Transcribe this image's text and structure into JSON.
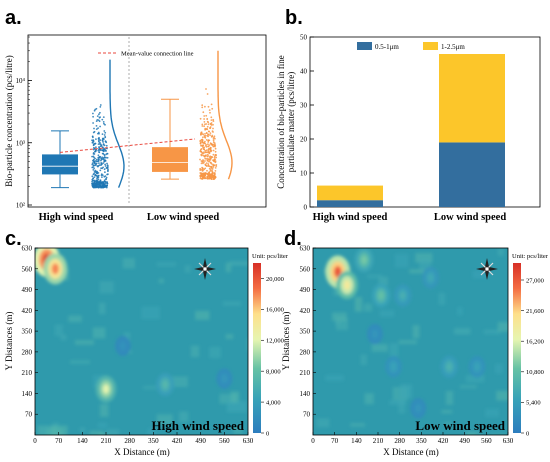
{
  "chart_data": [
    {
      "panel": "a.",
      "type": "box",
      "ylabel": "Bio-particle concentration (pcs/litre)",
      "yscale": "log",
      "ylim": [
        100,
        50000
      ],
      "y_ticks": [
        "10²",
        "10³",
        "10⁴"
      ],
      "y_tick_values": [
        100,
        1000,
        10000
      ],
      "categories": [
        "High wind speed",
        "Low  wind speed"
      ],
      "annotation": "Mean-value connection line",
      "colors": {
        "high": "#1f77b4",
        "low": "#f79646",
        "mean_line": "#e8473c"
      },
      "boxes": [
        {
          "name": "High wind speed",
          "whisker_low": 190,
          "q1": 310,
          "median": 420,
          "q3": 650,
          "whisker_high": 1550,
          "mean": 700
        },
        {
          "name": "Low  wind speed",
          "whisker_low": 260,
          "q1": 340,
          "median": 480,
          "q3": 850,
          "whisker_high": 5000,
          "mean": 1150
        }
      ]
    },
    {
      "panel": "b.",
      "type": "bar",
      "stacked": true,
      "ylabel": "Concentration of bio-particles in fine particulate matter (pcs/litre)",
      "ylim": [
        0,
        50
      ],
      "y_ticks": [
        0,
        10,
        20,
        30,
        40,
        50
      ],
      "categories": [
        "High wind speed",
        "Low  wind speed"
      ],
      "legend_position": "top",
      "series": [
        {
          "name": "0.5-1μm",
          "color": "#336e9e",
          "values": [
            2,
            19
          ]
        },
        {
          "name": "1-2.5μm",
          "color": "#fcc62a",
          "values": [
            4.3,
            26
          ]
        }
      ]
    },
    {
      "panel": "c.",
      "type": "heatmap",
      "title": "High wind speed",
      "xlabel": "X Distance (m)",
      "ylabel": "Y Distances (m)",
      "x_ticks": [
        0,
        70,
        140,
        210,
        280,
        350,
        420,
        490,
        560,
        630
      ],
      "y_ticks": [
        70,
        140,
        210,
        280,
        350,
        420,
        490,
        560,
        630
      ],
      "colorbar_label": "Unit: pcs/liter",
      "colorbar_ticks": [
        "0",
        "4,000",
        "8,000",
        "12,000",
        "16,000",
        "20,000"
      ],
      "colorbar_max": 22000,
      "hotspots": [
        {
          "x": 35,
          "y": 590,
          "value": 22000
        },
        {
          "x": 60,
          "y": 560,
          "value": 18000
        },
        {
          "x": 210,
          "y": 155,
          "value": 12000
        },
        {
          "x": 385,
          "y": 170,
          "value": 7000
        },
        {
          "x": 560,
          "y": 190,
          "value": 3000
        },
        {
          "x": 260,
          "y": 300,
          "value": 2500
        }
      ]
    },
    {
      "panel": "d.",
      "type": "heatmap",
      "title": "Low wind speed",
      "xlabel": "X Distance (m)",
      "ylabel": "Y Distances (m)",
      "x_ticks": [
        0,
        70,
        140,
        210,
        280,
        350,
        420,
        490,
        560,
        630
      ],
      "y_ticks": [
        70,
        140,
        210,
        280,
        350,
        420,
        490,
        560,
        630
      ],
      "colorbar_label": "Unit: pcs/liter",
      "colorbar_ticks": [
        "0",
        "5,400",
        "10,800",
        "16,200",
        "21,600",
        "27,000"
      ],
      "colorbar_max": 30000,
      "hotspots": [
        {
          "x": 80,
          "y": 550,
          "value": 27000
        },
        {
          "x": 110,
          "y": 505,
          "value": 19000
        },
        {
          "x": 165,
          "y": 590,
          "value": 12000
        },
        {
          "x": 220,
          "y": 470,
          "value": 11000
        },
        {
          "x": 290,
          "y": 470,
          "value": 8000
        },
        {
          "x": 380,
          "y": 530,
          "value": 7000
        },
        {
          "x": 440,
          "y": 230,
          "value": 8500
        },
        {
          "x": 530,
          "y": 230,
          "value": 6000
        },
        {
          "x": 260,
          "y": 230,
          "value": 6000
        },
        {
          "x": 340,
          "y": 90,
          "value": 4000
        },
        {
          "x": 200,
          "y": 340,
          "value": 4000
        }
      ]
    }
  ]
}
